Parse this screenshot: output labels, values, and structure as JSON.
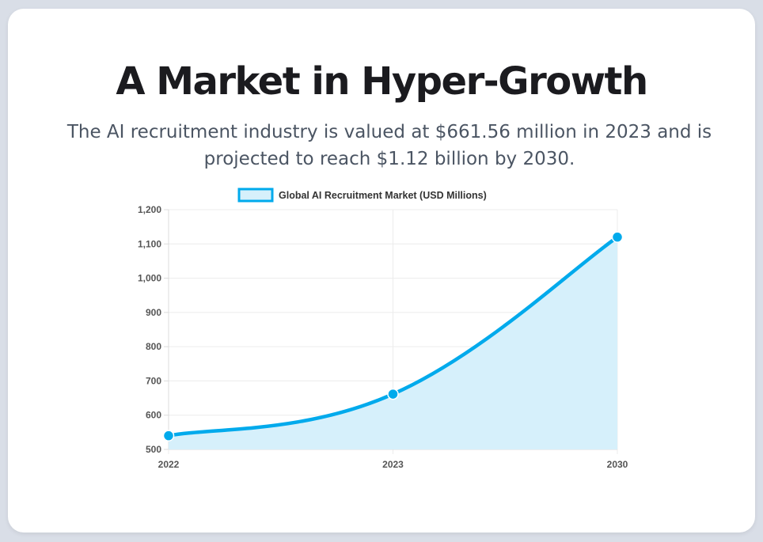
{
  "header": {
    "title": "A Market in Hyper-Growth",
    "subtitle": "The AI recruitment industry is valued at $661.56 million in 2023 and is projected to reach $1.12 billion by 2030."
  },
  "chart_data": {
    "type": "area",
    "title": "",
    "xlabel": "",
    "ylabel": "",
    "categories": [
      "2022",
      "2023",
      "2030"
    ],
    "series": [
      {
        "name": "Global AI Recruitment Market (USD Millions)",
        "values": [
          540,
          661.56,
          1120
        ]
      }
    ],
    "ylim": [
      500,
      1200
    ],
    "yticks": [
      500,
      600,
      700,
      800,
      900,
      1000,
      1100,
      1200
    ],
    "ytick_labels": [
      "500",
      "600",
      "700",
      "800",
      "900",
      "1,000",
      "1,100",
      "1,200"
    ],
    "grid": true,
    "legend": "top-center",
    "colors": {
      "line": "#00aaec",
      "fill": "#d6f0fb"
    }
  }
}
